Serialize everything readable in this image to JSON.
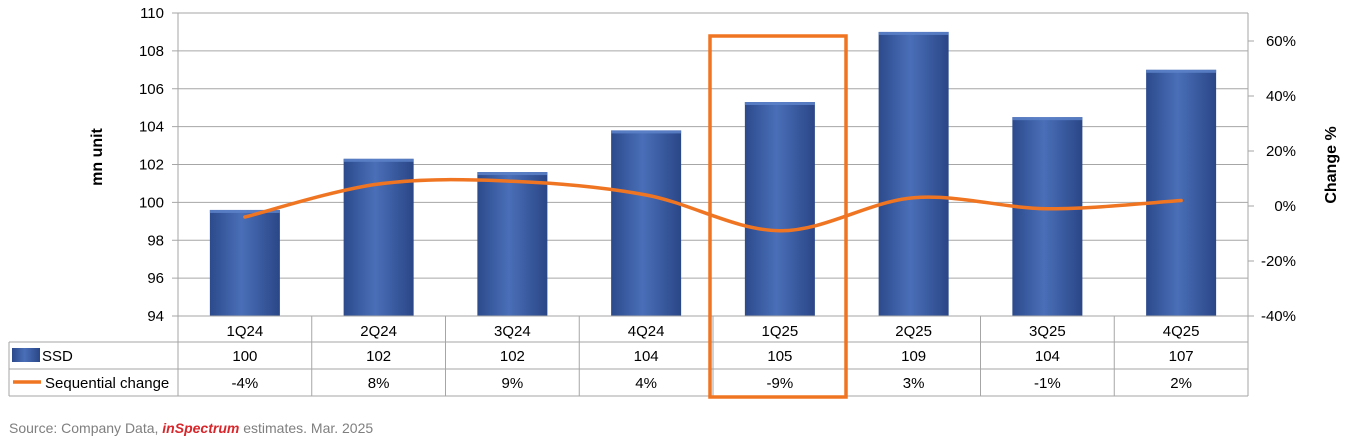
{
  "chart_data": {
    "type": "bar",
    "categories": [
      "1Q24",
      "2Q24",
      "3Q24",
      "4Q24",
      "1Q25",
      "2Q25",
      "3Q25",
      "4Q25"
    ],
    "series": [
      {
        "name": "SSD",
        "type": "bar",
        "axis": "left",
        "values": [
          99.6,
          102.3,
          101.6,
          103.8,
          105.3,
          109.0,
          104.5,
          107.0
        ],
        "labels": [
          "100",
          "102",
          "102",
          "104",
          "105",
          "109",
          "104",
          "107"
        ],
        "color": "#3a5ca3"
      },
      {
        "name": "Sequential change",
        "type": "line",
        "axis": "right",
        "values": [
          -4,
          8,
          9,
          4,
          -9,
          3,
          -1,
          2
        ],
        "labels": [
          "-4%",
          "8%",
          "9%",
          "4%",
          "-9%",
          "3%",
          "-1%",
          "2%"
        ],
        "color": "#f07522"
      }
    ],
    "ylabel": "mn unit",
    "ylim": [
      94,
      110
    ],
    "yticks": [
      "94",
      "96",
      "98",
      "100",
      "102",
      "104",
      "106",
      "108",
      "110"
    ],
    "y2label": "Change %",
    "y2lim": [
      -40,
      60
    ],
    "y2ticks": [
      "-40%",
      "-20%",
      "0%",
      "20%",
      "40%",
      "60%"
    ],
    "highlight_category": "1Q25",
    "highlight_color": "#f07522",
    "data_table": true
  },
  "source": {
    "prefix": "Source: Company Data, ",
    "brand_in": "in",
    "brand_rest": "Spectrum",
    "suffix": " estimates. Mar. 2025"
  }
}
